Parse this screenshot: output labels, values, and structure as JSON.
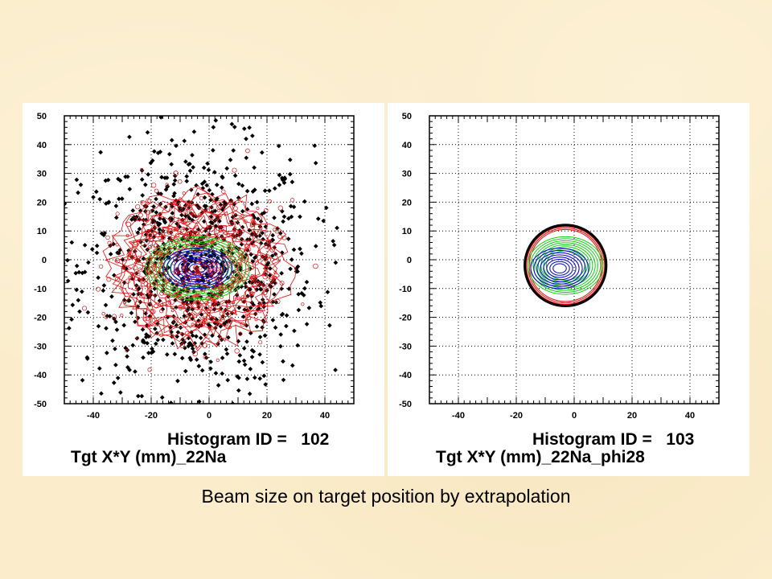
{
  "caption": "Beam size on target position by extrapolation",
  "colors": {
    "background": "#fbedcb",
    "outer_level": "#000000",
    "mid_level": "#dd1111",
    "inner_level": "#11cc11",
    "core_level": "#1111cc"
  },
  "chart_data": [
    {
      "type": "contour",
      "hist_label": "Histogram ID =   102",
      "title": "Tgt X*Y (mm)_22Na",
      "xlim": [
        -50,
        50
      ],
      "ylim": [
        -50,
        50
      ],
      "xticks": [
        -40,
        -20,
        0,
        20,
        40
      ],
      "yticks": [
        50,
        40,
        30,
        20,
        10,
        0,
        -10,
        -20,
        -30,
        -40,
        -50
      ],
      "grid": true,
      "center": [
        -4,
        -3
      ],
      "contour_levels": [
        {
          "color": "black",
          "rx": 42,
          "ry": 45
        },
        {
          "color": "red",
          "rx": 30,
          "ry": 26
        },
        {
          "color": "green",
          "rx": 18,
          "ry": 11
        },
        {
          "color": "blue",
          "rx": 12,
          "ry": 7
        }
      ]
    },
    {
      "type": "contour",
      "hist_label": "Histogram ID =   103",
      "title": "Tgt X*Y (mm)_22Na_phi28",
      "xlim": [
        -50,
        50
      ],
      "ylim": [
        -50,
        50
      ],
      "xticks": [
        -40,
        -20,
        0,
        20,
        40
      ],
      "yticks": [
        50,
        40,
        30,
        20,
        10,
        0,
        -10,
        -20,
        -30,
        -40,
        -50
      ],
      "grid": true,
      "center": [
        -4,
        -3
      ],
      "cut_radius": 14,
      "contour_levels": [
        {
          "color": "black",
          "rx": 14,
          "ry": 14
        },
        {
          "color": "red",
          "rx": 14,
          "ry": 13
        },
        {
          "color": "green",
          "rx": 13,
          "ry": 10
        },
        {
          "color": "blue",
          "rx": 10,
          "ry": 7
        }
      ]
    }
  ]
}
